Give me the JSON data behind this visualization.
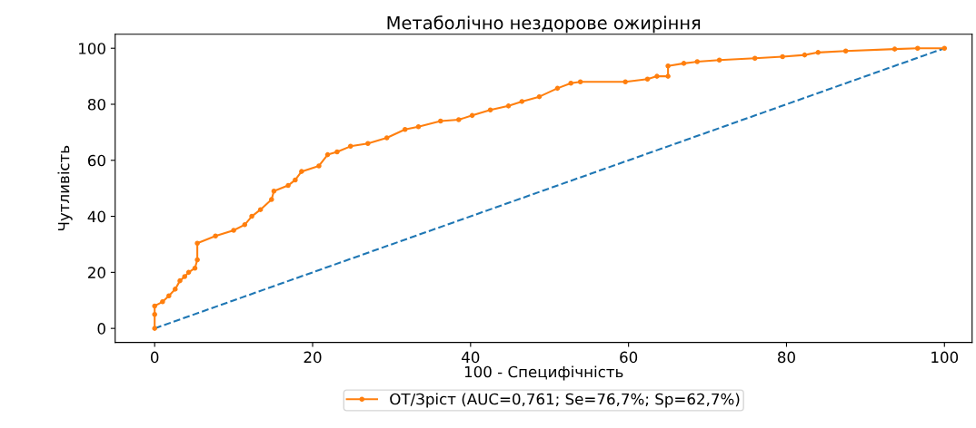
{
  "chart_data": {
    "type": "line",
    "title": "Метаболічно нездорове ожиріння",
    "xlabel": "100 - Специфічність",
    "ylabel": "Чутливість",
    "xlim": [
      -5,
      103.5
    ],
    "ylim": [
      -5,
      105
    ],
    "xticks": [
      0,
      20,
      40,
      60,
      80,
      100
    ],
    "yticks": [
      0,
      20,
      40,
      60,
      80,
      100
    ],
    "grid": false,
    "legend": "bottom",
    "series": [
      {
        "name": null,
        "color": "#1f77b4",
        "line_style": "dashed",
        "marker": "none",
        "x": [
          0,
          100
        ],
        "values": [
          0,
          100
        ]
      },
      {
        "name": "ОТ/Зріст (AUC=0,761; Se=76,7%; Sp=62,7%)",
        "color": "#ff7f0e",
        "line_style": "solid",
        "marker": "circle",
        "x": [
          0,
          0,
          0,
          1,
          1.8,
          2.6,
          3.2,
          3.8,
          4.3,
          5.1,
          5.4,
          5.4,
          7.7,
          10,
          11.4,
          12.3,
          13.4,
          14.8,
          15.1,
          16.9,
          17.8,
          18.6,
          20.8,
          21.9,
          23.1,
          24.8,
          27,
          29.4,
          31.7,
          33.4,
          36.2,
          38.5,
          40.2,
          42.5,
          44.8,
          46.5,
          48.7,
          51,
          52.7,
          53.9,
          59.6,
          62.4,
          63.6,
          65,
          65,
          67,
          68.7,
          71.5,
          76,
          79.5,
          82.3,
          84,
          87.5,
          93.7,
          96.6,
          100
        ],
        "values": [
          0,
          5,
          8,
          9.5,
          11.6,
          14,
          17,
          18.5,
          20,
          21.5,
          24.5,
          30.4,
          33,
          35,
          37,
          40,
          42.4,
          46,
          49,
          51,
          53,
          56,
          58,
          62,
          63,
          65,
          66,
          68,
          71,
          72,
          74,
          74.5,
          76,
          78,
          79.4,
          81,
          82.7,
          85.7,
          87.5,
          88,
          88,
          89,
          90,
          90,
          93.7,
          94.6,
          95.2,
          95.8,
          96.4,
          97,
          97.6,
          98.5,
          99,
          99.7,
          100,
          100
        ]
      }
    ]
  }
}
